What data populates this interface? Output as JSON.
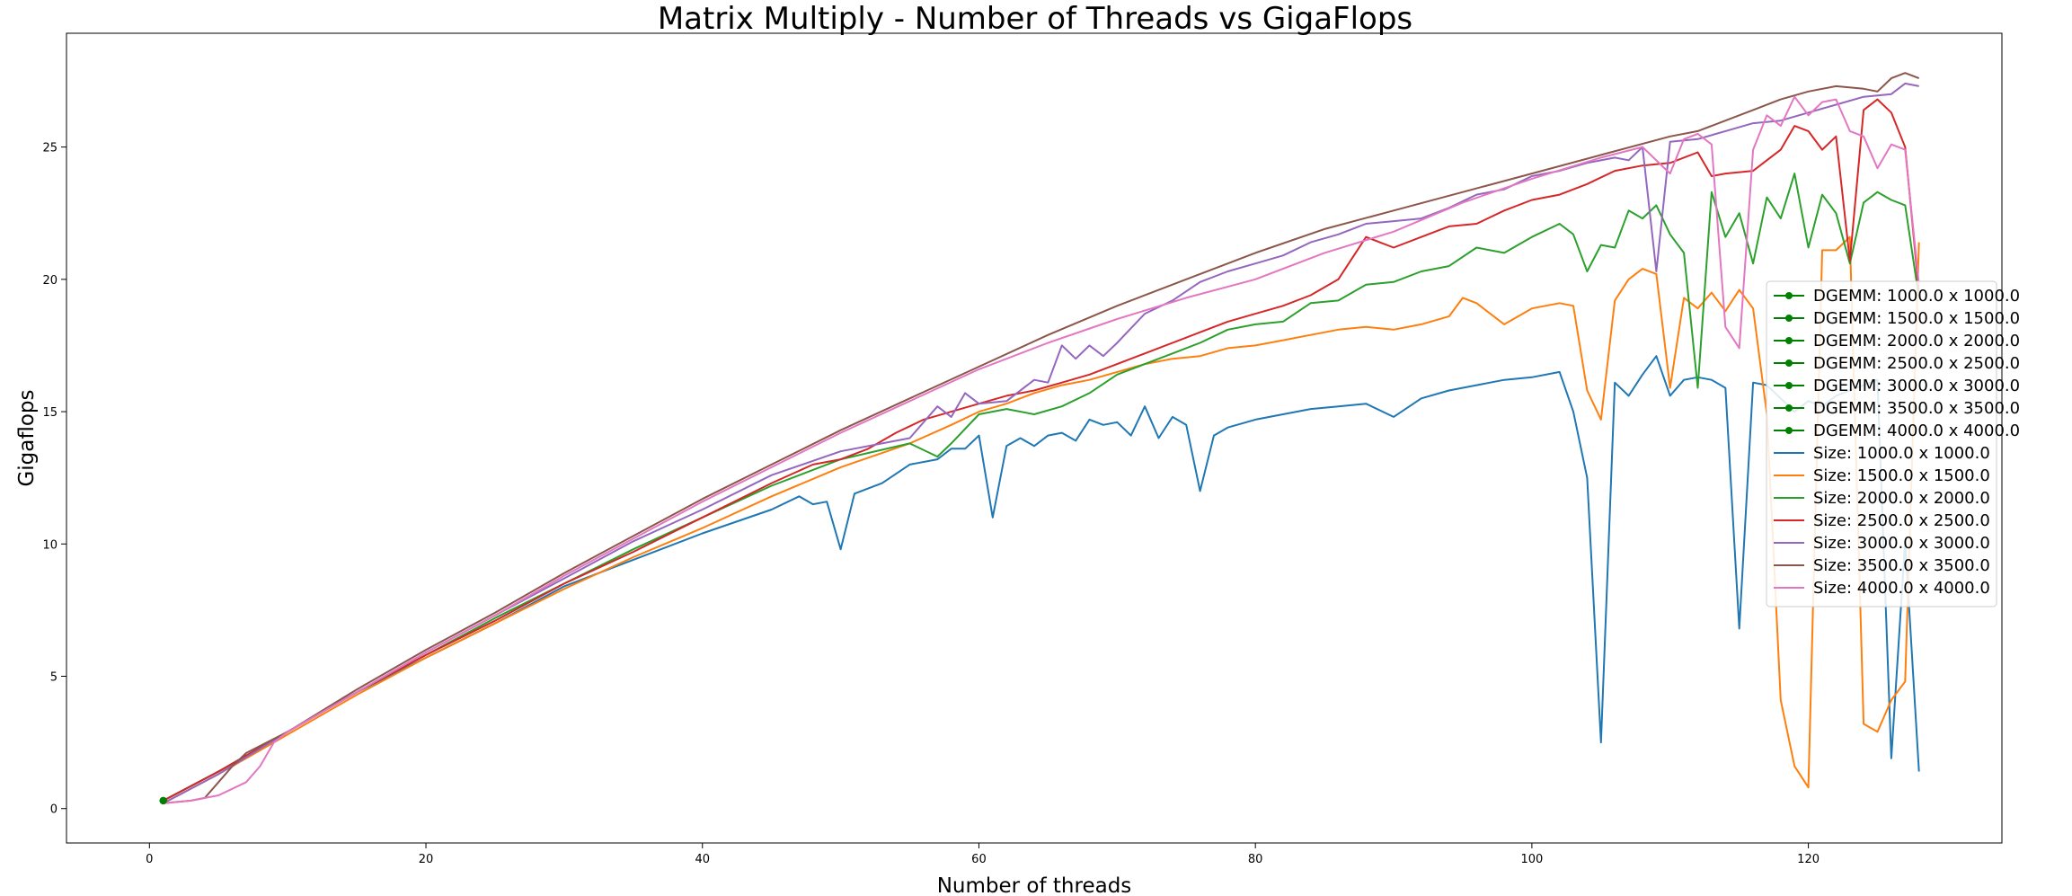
{
  "chart_data": {
    "type": "line",
    "title": "Matrix Multiply - Number of Threads vs GigaFlops",
    "xlabel": "Number of threads",
    "ylabel": "Gigaflops",
    "xlim": [
      -6,
      134
    ],
    "ylim": [
      -1.3,
      29.3
    ],
    "xticks": [
      0,
      20,
      40,
      60,
      80,
      100,
      120
    ],
    "yticks": [
      0,
      5,
      10,
      15,
      20,
      25
    ],
    "grid": false,
    "legend_position": "center-right",
    "dgemm_series": [
      {
        "name": "DGEMM: 1000.0 x 1000.0",
        "color": "#008000",
        "x": [
          1
        ],
        "y": [
          0.3
        ]
      },
      {
        "name": "DGEMM: 1500.0 x 1500.0",
        "color": "#008000",
        "x": [
          1
        ],
        "y": [
          0.3
        ]
      },
      {
        "name": "DGEMM: 2000.0 x 2000.0",
        "color": "#008000",
        "x": [
          1
        ],
        "y": [
          0.3
        ]
      },
      {
        "name": "DGEMM: 2500.0 x 2500.0",
        "color": "#008000",
        "x": [
          1
        ],
        "y": [
          0.3
        ]
      },
      {
        "name": "DGEMM: 3000.0 x 3000.0",
        "color": "#008000",
        "x": [
          1
        ],
        "y": [
          0.3
        ]
      },
      {
        "name": "DGEMM: 3500.0 x 3500.0",
        "color": "#008000",
        "x": [
          1
        ],
        "y": [
          0.3
        ]
      },
      {
        "name": "DGEMM: 4000.0 x 4000.0",
        "color": "#008000",
        "x": [
          1
        ],
        "y": [
          0.3
        ]
      }
    ],
    "series": [
      {
        "name": "Size: 1000.0 x 1000.0",
        "color": "#1f77b4",
        "x": [
          1,
          5,
          10,
          15,
          20,
          25,
          30,
          35,
          40,
          45,
          47,
          48,
          49,
          50,
          51,
          52,
          53,
          55,
          57,
          58,
          59,
          60,
          61,
          62,
          63,
          64,
          65,
          66,
          67,
          68,
          69,
          70,
          71,
          72,
          73,
          74,
          75,
          76,
          77,
          78,
          80,
          82,
          84,
          86,
          88,
          90,
          92,
          94,
          96,
          98,
          100,
          102,
          103,
          104,
          105,
          106,
          107,
          108,
          109,
          110,
          111,
          112,
          113,
          114,
          115,
          116,
          117,
          118,
          119,
          120,
          121,
          122,
          123,
          124,
          125,
          126,
          127,
          128
        ],
        "y": [
          0.3,
          1.4,
          2.9,
          4.4,
          5.7,
          7.0,
          8.4,
          9.4,
          10.4,
          11.3,
          11.8,
          11.5,
          11.6,
          9.8,
          11.9,
          12.1,
          12.3,
          13.0,
          13.2,
          13.6,
          13.6,
          14.1,
          11.0,
          13.7,
          14.0,
          13.7,
          14.1,
          14.2,
          13.9,
          14.7,
          14.5,
          14.6,
          14.1,
          15.2,
          14.0,
          14.8,
          14.5,
          12.0,
          14.1,
          14.4,
          14.7,
          14.9,
          15.1,
          15.2,
          15.3,
          14.8,
          15.5,
          15.8,
          16.0,
          16.2,
          16.3,
          16.5,
          15.0,
          12.5,
          2.5,
          16.1,
          15.6,
          16.4,
          17.1,
          15.6,
          16.2,
          16.3,
          16.2,
          15.9,
          6.8,
          16.1,
          16.0,
          15.5,
          15.0,
          15.4,
          15.2,
          15.6,
          15.8,
          16.0,
          16.2,
          1.9,
          10.1,
          1.4
        ]
      },
      {
        "name": "Size: 1500.0 x 1500.0",
        "color": "#ff7f0e",
        "x": [
          1,
          5,
          10,
          15,
          20,
          25,
          30,
          35,
          40,
          45,
          50,
          55,
          58,
          60,
          62,
          64,
          66,
          68,
          70,
          72,
          74,
          76,
          78,
          80,
          82,
          84,
          86,
          88,
          90,
          92,
          94,
          95,
          96,
          98,
          100,
          102,
          103,
          104,
          105,
          106,
          107,
          108,
          109,
          110,
          111,
          112,
          113,
          114,
          115,
          116,
          117,
          118,
          119,
          120,
          121,
          122,
          123,
          124,
          125,
          126,
          127,
          128
        ],
        "y": [
          0.2,
          1.3,
          2.8,
          4.3,
          5.7,
          7.0,
          8.3,
          9.5,
          10.6,
          11.8,
          12.9,
          13.8,
          14.5,
          15.0,
          15.3,
          15.7,
          16.0,
          16.2,
          16.5,
          16.8,
          17.0,
          17.1,
          17.4,
          17.5,
          17.7,
          17.9,
          18.1,
          18.2,
          18.1,
          18.3,
          18.6,
          19.3,
          19.1,
          18.3,
          18.9,
          19.1,
          19.0,
          15.8,
          14.7,
          19.2,
          20.0,
          20.4,
          20.2,
          15.9,
          19.3,
          18.9,
          19.5,
          18.8,
          19.6,
          18.9,
          14.9,
          4.1,
          1.6,
          0.8,
          21.1,
          21.1,
          21.6,
          3.2,
          2.9,
          4.1,
          4.8,
          21.4
        ]
      },
      {
        "name": "Size: 2000.0 x 2000.0",
        "color": "#2ca02c",
        "x": [
          1,
          5,
          10,
          15,
          20,
          25,
          30,
          35,
          40,
          45,
          50,
          55,
          57,
          58,
          60,
          62,
          64,
          66,
          68,
          70,
          72,
          74,
          76,
          78,
          80,
          82,
          84,
          86,
          88,
          90,
          92,
          94,
          96,
          98,
          100,
          102,
          103,
          104,
          105,
          106,
          107,
          108,
          109,
          110,
          111,
          112,
          113,
          114,
          115,
          116,
          117,
          118,
          119,
          120,
          121,
          122,
          123,
          124,
          125,
          126,
          127,
          128
        ],
        "y": [
          0.3,
          1.4,
          2.9,
          4.4,
          5.8,
          7.2,
          8.5,
          9.8,
          11.0,
          12.2,
          13.2,
          13.8,
          13.3,
          13.8,
          14.9,
          15.1,
          14.9,
          15.2,
          15.7,
          16.4,
          16.8,
          17.2,
          17.6,
          18.1,
          18.3,
          18.4,
          19.1,
          19.2,
          19.8,
          19.9,
          20.3,
          20.5,
          21.2,
          21.0,
          21.6,
          22.1,
          21.7,
          20.3,
          21.3,
          21.2,
          22.6,
          22.3,
          22.8,
          21.7,
          21.0,
          15.9,
          23.3,
          21.6,
          22.5,
          20.6,
          23.1,
          22.3,
          24.0,
          21.2,
          23.2,
          22.5,
          20.6,
          22.9,
          23.3,
          23.0,
          22.8,
          19.3
        ]
      },
      {
        "name": "Size: 2500.0 x 2500.0",
        "color": "#d62728",
        "x": [
          1,
          5,
          10,
          15,
          20,
          25,
          30,
          35,
          40,
          45,
          48,
          50,
          52,
          54,
          56,
          58,
          60,
          62,
          64,
          66,
          68,
          70,
          72,
          74,
          76,
          78,
          80,
          82,
          84,
          86,
          88,
          90,
          92,
          94,
          96,
          98,
          100,
          102,
          104,
          106,
          108,
          110,
          112,
          113,
          114,
          116,
          118,
          119,
          120,
          121,
          122,
          123,
          124,
          125,
          126,
          127,
          128
        ],
        "y": [
          0.3,
          1.4,
          2.9,
          4.4,
          5.8,
          7.1,
          8.5,
          9.7,
          11.0,
          12.3,
          13.0,
          13.2,
          13.6,
          14.2,
          14.7,
          15.0,
          15.3,
          15.6,
          15.8,
          16.1,
          16.4,
          16.8,
          17.2,
          17.6,
          18.0,
          18.4,
          18.7,
          19.0,
          19.4,
          20.0,
          21.6,
          21.2,
          21.6,
          22.0,
          22.1,
          22.6,
          23.0,
          23.2,
          23.6,
          24.1,
          24.3,
          24.4,
          24.8,
          23.9,
          24.0,
          24.1,
          24.9,
          25.8,
          25.6,
          24.9,
          25.4,
          20.7,
          26.4,
          26.8,
          26.3,
          25.0,
          19.5
        ]
      },
      {
        "name": "Size: 3000.0 x 3000.0",
        "color": "#9467bd",
        "x": [
          1,
          5,
          10,
          15,
          20,
          25,
          30,
          35,
          40,
          45,
          50,
          55,
          57,
          58,
          59,
          60,
          62,
          64,
          65,
          66,
          67,
          68,
          69,
          70,
          72,
          74,
          76,
          78,
          80,
          82,
          84,
          86,
          88,
          90,
          92,
          94,
          96,
          98,
          100,
          102,
          104,
          106,
          107,
          108,
          109,
          110,
          112,
          114,
          116,
          118,
          120,
          122,
          124,
          126,
          127,
          128
        ],
        "y": [
          0.2,
          1.3,
          2.9,
          4.4,
          5.9,
          7.3,
          8.7,
          10.1,
          11.3,
          12.6,
          13.5,
          14.0,
          15.2,
          14.8,
          15.7,
          15.3,
          15.4,
          16.2,
          16.1,
          17.5,
          17.0,
          17.5,
          17.1,
          17.6,
          18.7,
          19.2,
          19.9,
          20.3,
          20.6,
          20.9,
          21.4,
          21.7,
          22.1,
          22.2,
          22.3,
          22.7,
          23.2,
          23.4,
          23.9,
          24.1,
          24.4,
          24.6,
          24.5,
          25.0,
          20.3,
          25.2,
          25.3,
          25.6,
          25.9,
          26.0,
          26.3,
          26.6,
          26.9,
          27.0,
          27.4,
          27.3
        ]
      },
      {
        "name": "Size: 3500.0 x 3500.0",
        "color": "#8c564b",
        "x": [
          1,
          3,
          4,
          5,
          6,
          7,
          10,
          15,
          20,
          25,
          30,
          35,
          40,
          45,
          50,
          55,
          60,
          65,
          70,
          75,
          80,
          85,
          90,
          95,
          100,
          105,
          110,
          112,
          114,
          116,
          118,
          120,
          122,
          124,
          125,
          126,
          127,
          128
        ],
        "y": [
          0.2,
          0.3,
          0.4,
          1.0,
          1.6,
          2.1,
          2.9,
          4.5,
          6.0,
          7.4,
          8.9,
          10.3,
          11.7,
          13.0,
          14.3,
          15.5,
          16.7,
          17.9,
          19.0,
          20.0,
          21.0,
          21.9,
          22.6,
          23.3,
          24.0,
          24.7,
          25.4,
          25.6,
          26.0,
          26.4,
          26.8,
          27.1,
          27.3,
          27.2,
          27.1,
          27.6,
          27.8,
          27.6
        ]
      },
      {
        "name": "Size: 4000.0 x 4000.0",
        "color": "#e377c2",
        "x": [
          1,
          3,
          5,
          7,
          8,
          9,
          10,
          15,
          20,
          25,
          30,
          35,
          40,
          45,
          50,
          55,
          60,
          65,
          70,
          75,
          80,
          85,
          90,
          95,
          100,
          105,
          108,
          110,
          111,
          112,
          113,
          114,
          115,
          116,
          117,
          118,
          119,
          120,
          121,
          122,
          123,
          124,
          125,
          126,
          127,
          128
        ],
        "y": [
          0.2,
          0.3,
          0.5,
          1.0,
          1.6,
          2.5,
          2.9,
          4.4,
          5.9,
          7.3,
          8.8,
          10.2,
          11.6,
          12.9,
          14.2,
          15.4,
          16.6,
          17.6,
          18.5,
          19.3,
          20.0,
          21.0,
          21.8,
          22.9,
          23.8,
          24.6,
          25.0,
          24.0,
          25.3,
          25.5,
          25.1,
          18.2,
          17.4,
          24.9,
          26.2,
          25.8,
          26.9,
          26.2,
          26.7,
          26.8,
          25.6,
          25.4,
          24.2,
          25.1,
          24.9,
          19.8
        ]
      }
    ]
  }
}
